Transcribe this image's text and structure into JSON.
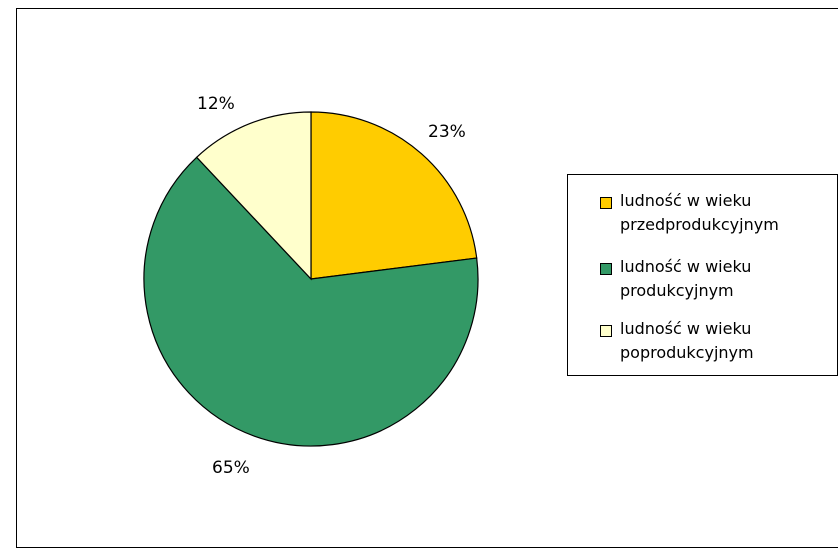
{
  "chart_data": {
    "type": "pie",
    "series": [
      {
        "label": "ludność w wieku przedprodukcyjnym",
        "value": 23,
        "display": "23%",
        "color": "#FFCC00"
      },
      {
        "label": "ludność w wieku produkcyjnym",
        "value": 65,
        "display": "65%",
        "color": "#339966"
      },
      {
        "label": "ludność w wieku poprodukcyjnym",
        "value": 12,
        "display": "12%",
        "color": "#FFFFCC"
      }
    ],
    "start_angle_deg": 0,
    "direction": "clockwise",
    "legend_position": "right"
  },
  "legend": {
    "items": [
      {
        "line1": "ludność w wieku",
        "line2": "przedprodukcyjnym",
        "color": "#FFCC00"
      },
      {
        "line1": "ludność w wieku",
        "line2": "produkcyjnym",
        "color": "#339966"
      },
      {
        "line1": "ludność w wieku",
        "line2": "poprodukcyjnym",
        "color": "#FFFFCC"
      }
    ]
  }
}
